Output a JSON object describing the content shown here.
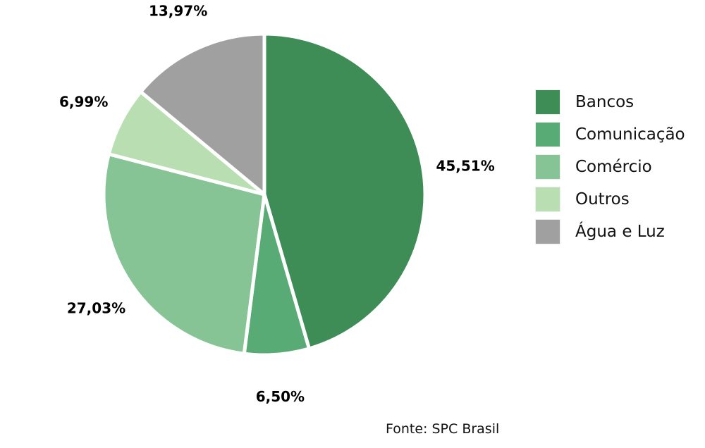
{
  "chart_data": {
    "type": "pie",
    "title": "",
    "slices": [
      {
        "label": "Bancos",
        "value": 45.51,
        "display": "45,51%",
        "color": "#3f8d56"
      },
      {
        "label": "Comunicação",
        "value": 6.5,
        "display": "6,50%",
        "color": "#58ab75"
      },
      {
        "label": "Comércio",
        "value": 27.03,
        "display": "27,03%",
        "color": "#86c496"
      },
      {
        "label": "Outros",
        "value": 6.99,
        "display": "6,99%",
        "color": "#b8deb1"
      },
      {
        "label": "Água e Luz",
        "value": 13.97,
        "display": "13,97%",
        "color": "#a0a0a0"
      }
    ],
    "legend_position": "right",
    "source": "Fonte: SPC Brasil"
  }
}
